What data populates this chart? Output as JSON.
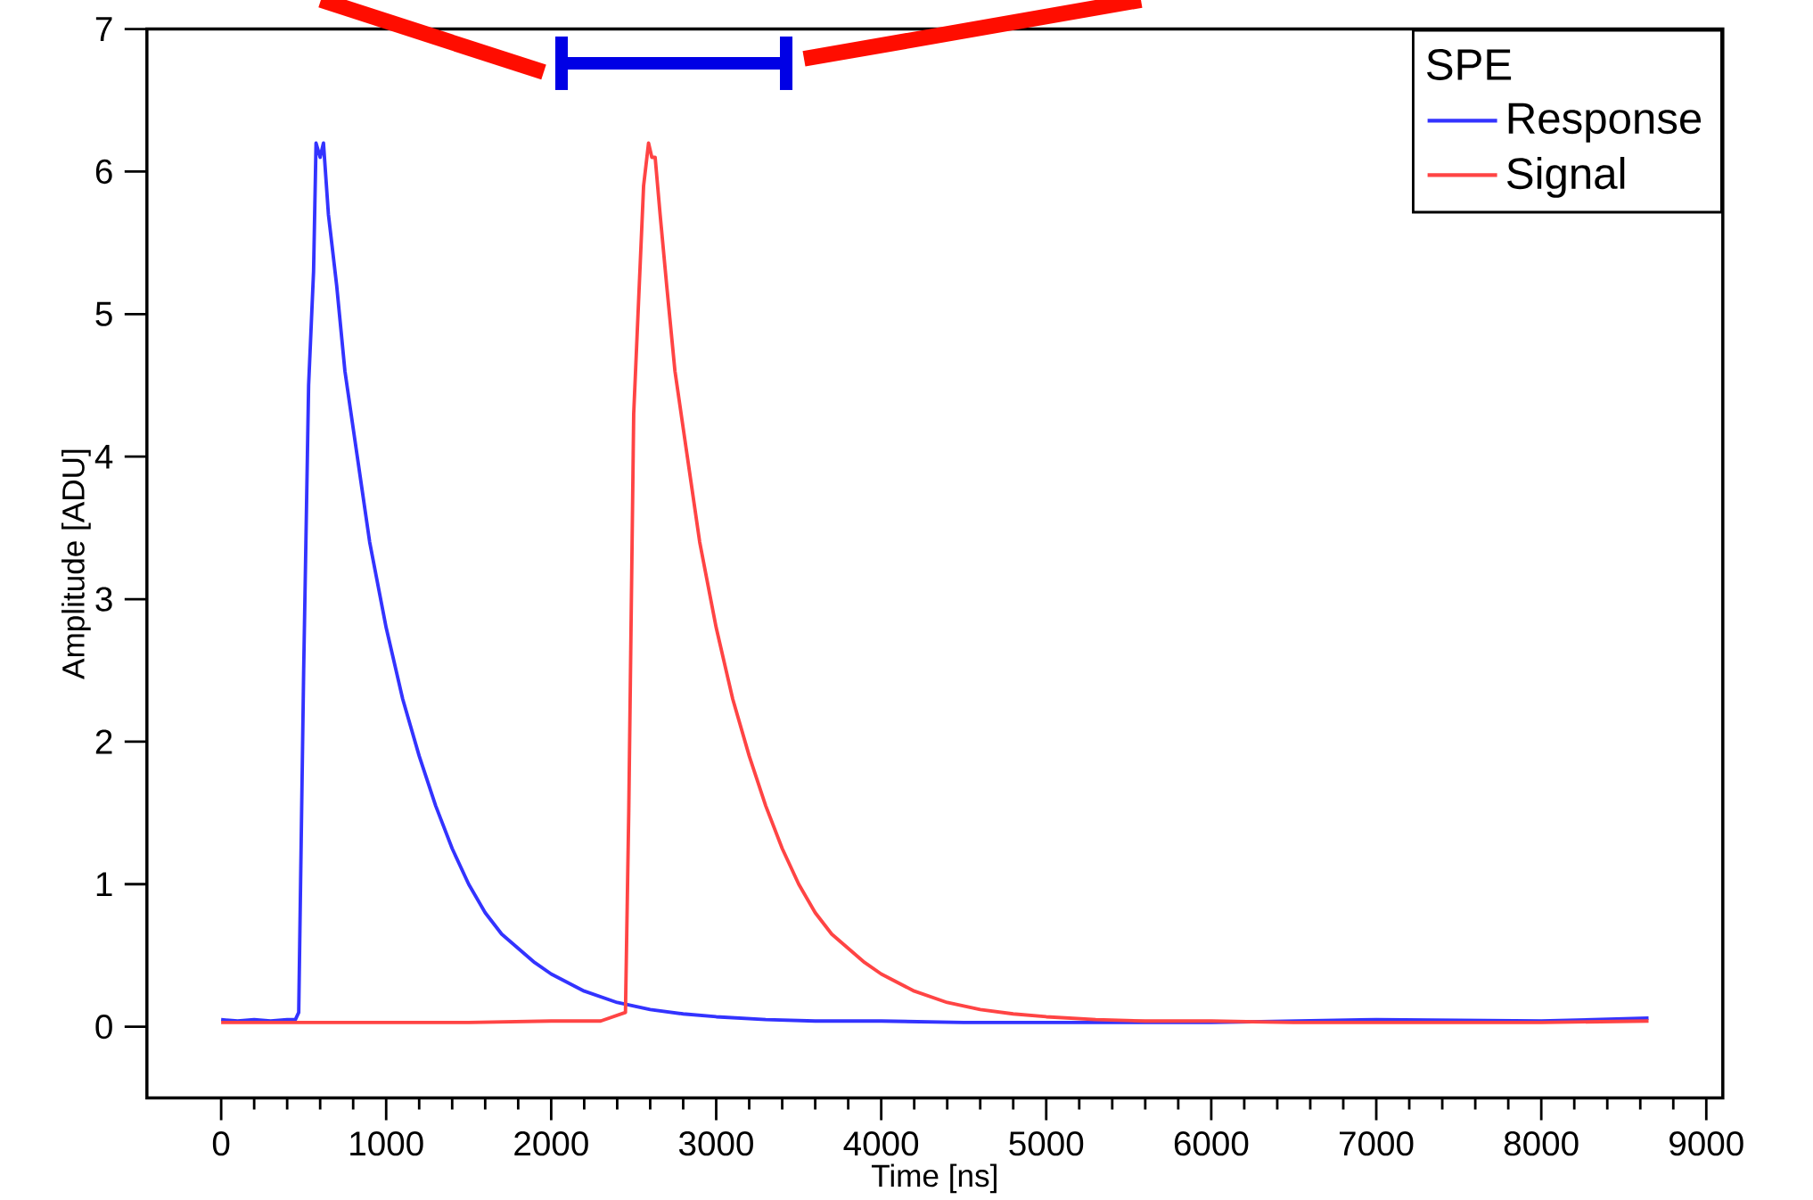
{
  "chart_data": {
    "type": "line",
    "xlabel": "Time [ns]",
    "ylabel": "Amplitude [ADU]",
    "legend_title": "SPE",
    "legend": "top right",
    "grid": false,
    "marker": "none",
    "line_style": "solid",
    "xlim": [
      -450,
      9100
    ],
    "ylim": [
      -0.5,
      7
    ],
    "xticks": [
      0,
      1000,
      2000,
      3000,
      4000,
      5000,
      6000,
      7000,
      8000,
      9000
    ],
    "yticks": [
      0,
      1,
      2,
      3,
      4,
      5,
      6,
      7
    ],
    "series": [
      {
        "name": "Response",
        "color": "#3333ff",
        "x": [
          0,
          100,
          200,
          300,
          400,
          450,
          470,
          500,
          530,
          560,
          575,
          600,
          620,
          650,
          700,
          750,
          800,
          850,
          900,
          1000,
          1100,
          1200,
          1300,
          1400,
          1500,
          1600,
          1700,
          1800,
          1900,
          2000,
          2200,
          2400,
          2600,
          2800,
          3000,
          3300,
          3600,
          4000,
          4500,
          5000,
          6000,
          7000,
          8000,
          8650
        ],
        "values": [
          0.05,
          0.04,
          0.05,
          0.04,
          0.05,
          0.05,
          0.1,
          2.5,
          4.5,
          5.3,
          6.2,
          6.1,
          6.2,
          5.7,
          5.2,
          4.6,
          4.2,
          3.8,
          3.4,
          2.8,
          2.3,
          1.9,
          1.55,
          1.25,
          1.0,
          0.8,
          0.65,
          0.55,
          0.45,
          0.37,
          0.25,
          0.17,
          0.12,
          0.09,
          0.07,
          0.05,
          0.04,
          0.04,
          0.03,
          0.03,
          0.03,
          0.05,
          0.04,
          0.06
        ]
      },
      {
        "name": "Signal",
        "color": "#ff4444",
        "x": [
          0,
          500,
          1000,
          1500,
          2000,
          2300,
          2450,
          2470,
          2500,
          2530,
          2560,
          2590,
          2610,
          2630,
          2660,
          2700,
          2750,
          2800,
          2850,
          2900,
          3000,
          3100,
          3200,
          3300,
          3400,
          3500,
          3600,
          3700,
          3800,
          3900,
          4000,
          4200,
          4400,
          4600,
          4800,
          5000,
          5300,
          5600,
          6000,
          6500,
          7000,
          8000,
          8650
        ],
        "values": [
          0.03,
          0.03,
          0.03,
          0.03,
          0.04,
          0.04,
          0.1,
          1.5,
          4.3,
          5.1,
          5.9,
          6.2,
          6.1,
          6.1,
          5.7,
          5.2,
          4.6,
          4.2,
          3.8,
          3.4,
          2.8,
          2.3,
          1.9,
          1.55,
          1.25,
          1.0,
          0.8,
          0.65,
          0.55,
          0.45,
          0.37,
          0.25,
          0.17,
          0.12,
          0.09,
          0.07,
          0.05,
          0.04,
          0.04,
          0.03,
          0.03,
          0.03,
          0.04
        ]
      }
    ]
  }
}
